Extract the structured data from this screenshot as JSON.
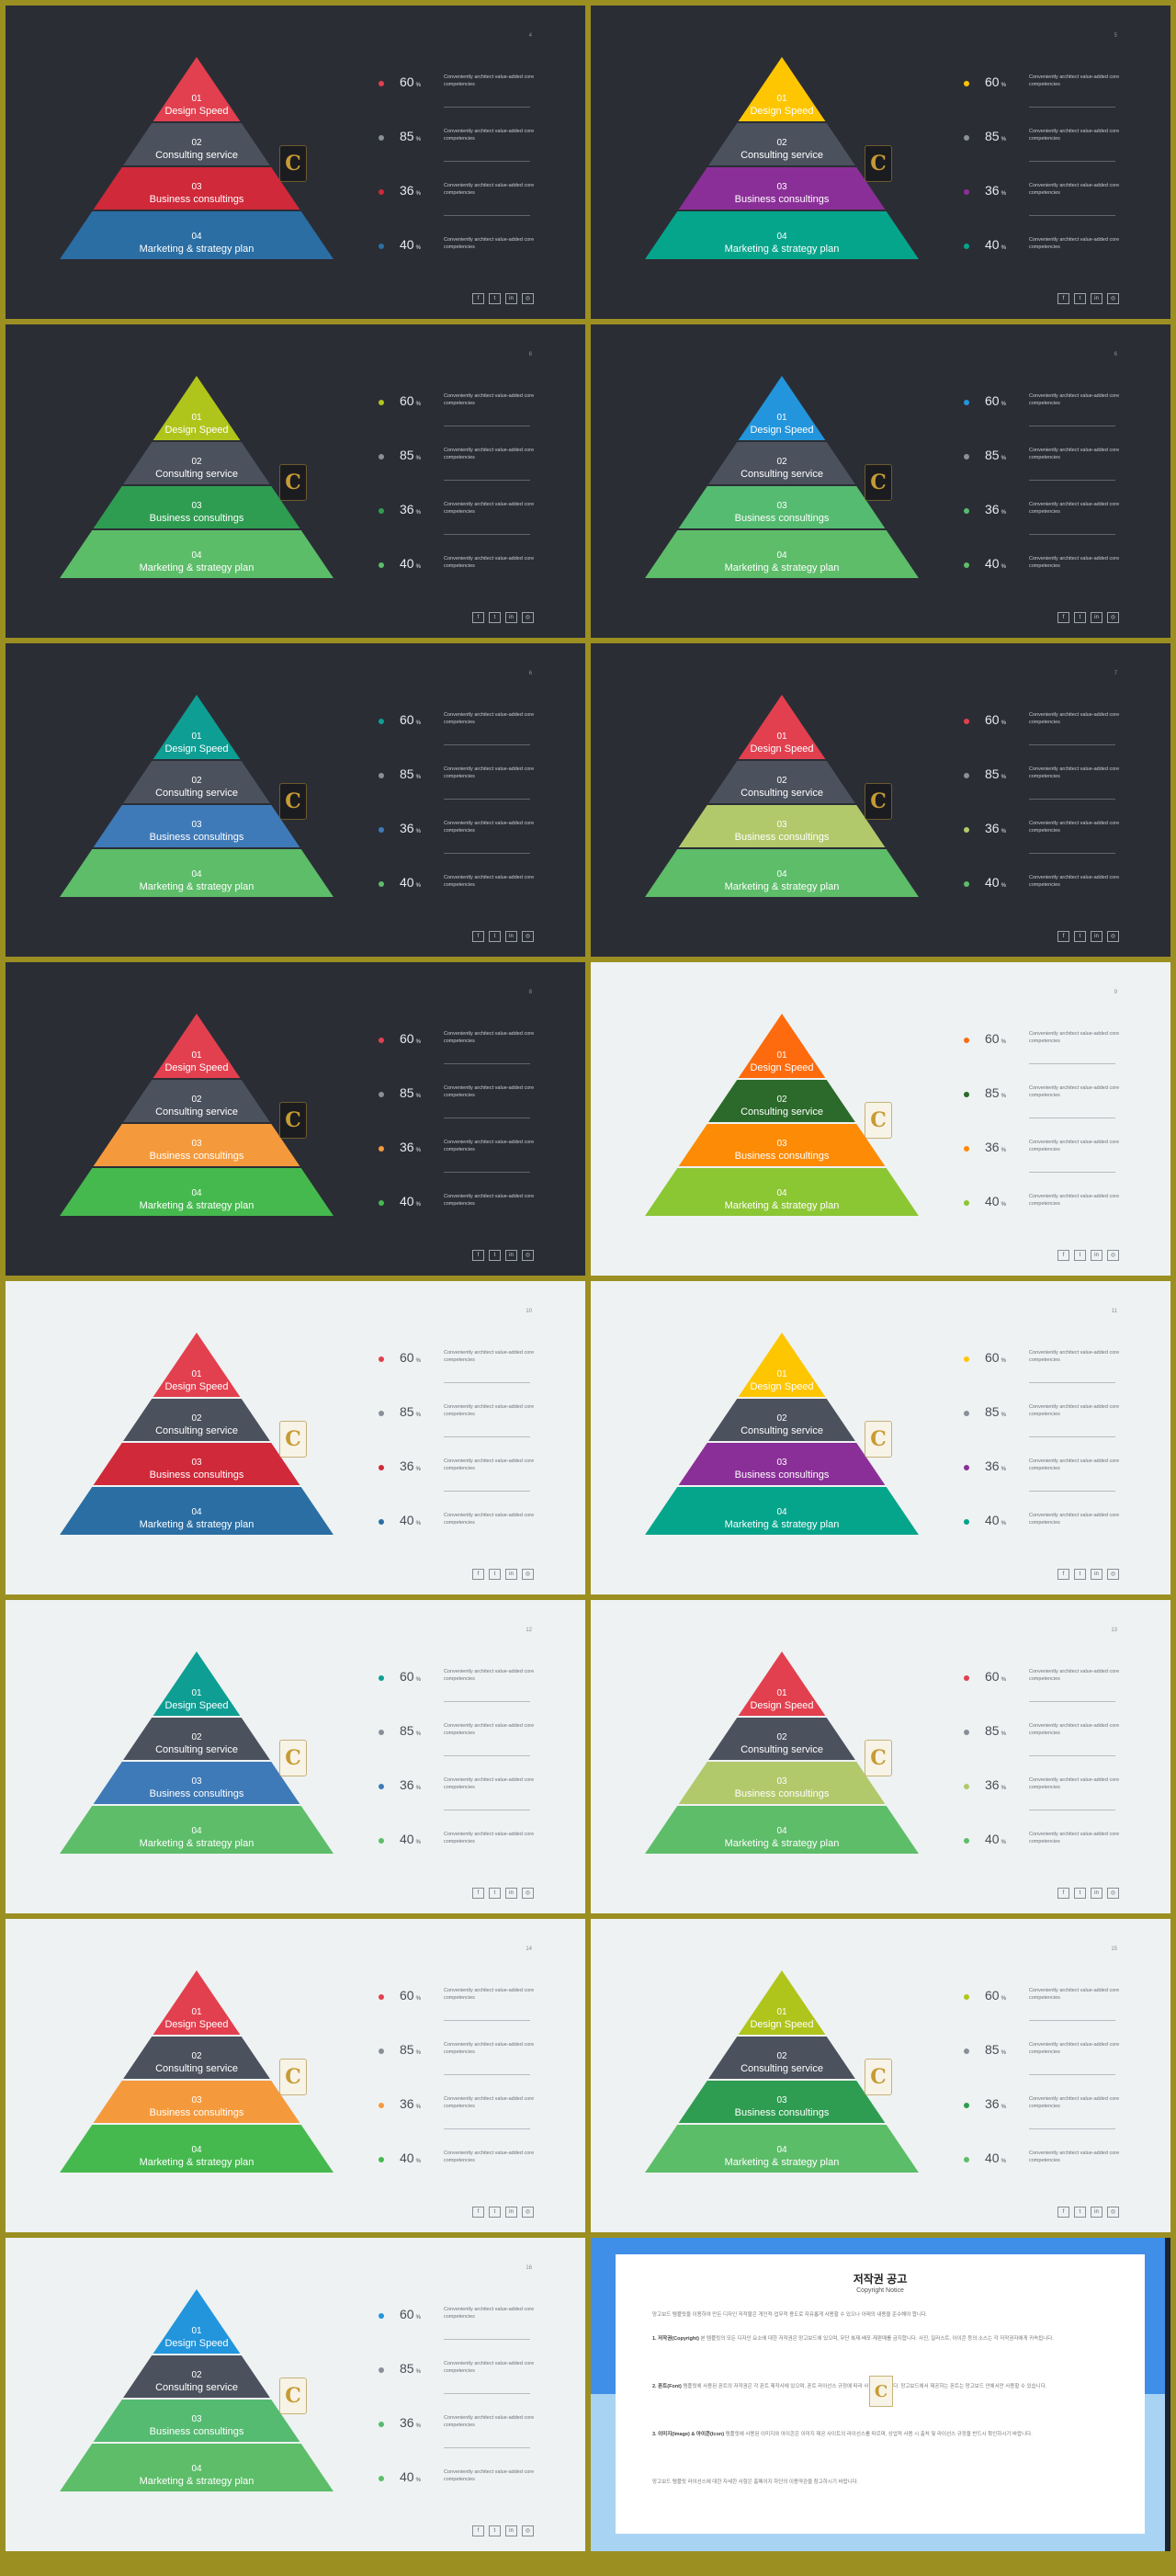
{
  "tiers": [
    {
      "num": "01",
      "label": "Design Speed"
    },
    {
      "num": "02",
      "label": "Consulting service"
    },
    {
      "num": "03",
      "label": "Business consultings"
    },
    {
      "num": "04",
      "label": "Marketing & strategy plan"
    }
  ],
  "stats": [
    {
      "value": "60",
      "unit": "%",
      "desc": "Conveniently architect value-added core competencies"
    },
    {
      "value": "85",
      "unit": "%",
      "desc": "Conveniently architect value-added core competencies"
    },
    {
      "value": "36",
      "unit": "%",
      "desc": "Conveniently architect value-added core competencies"
    },
    {
      "value": "40",
      "unit": "%",
      "desc": "Conveniently architect value-added core competencies"
    }
  ],
  "logo_letter": "C",
  "social_icons": [
    "facebook-icon",
    "twitter-icon",
    "linkedin-icon",
    "instagram-icon"
  ],
  "social_glyphs": [
    "f",
    "t",
    "in",
    "◎"
  ],
  "slides": [
    {
      "page": "4",
      "theme": "dark",
      "colors": [
        "#e2404f",
        "#4b515d",
        "#d0293a",
        "#2a6ea4"
      ]
    },
    {
      "page": "5",
      "theme": "dark",
      "colors": [
        "#fec600",
        "#4b515d",
        "#8b2f98",
        "#05a58c"
      ]
    },
    {
      "page": "6",
      "theme": "dark",
      "colors": [
        "#afc51b",
        "#4b515d",
        "#2f9d51",
        "#5cbd69"
      ]
    },
    {
      "page": "6",
      "theme": "dark",
      "colors": [
        "#2295dc",
        "#4b515d",
        "#55bb71",
        "#5dbd69"
      ]
    },
    {
      "page": "6",
      "theme": "dark",
      "colors": [
        "#0e9e94",
        "#4b515d",
        "#3f7ab8",
        "#5dbd69"
      ]
    },
    {
      "page": "7",
      "theme": "dark",
      "colors": [
        "#e2404f",
        "#4b515d",
        "#b2c96b",
        "#5dbd69"
      ]
    },
    {
      "page": "8",
      "theme": "dark",
      "colors": [
        "#e2404f",
        "#4b515d",
        "#f59a3c",
        "#45b94e"
      ]
    },
    {
      "page": "9",
      "theme": "light",
      "colors": [
        "#fd6b0e",
        "#2b6a2a",
        "#fd8b05",
        "#8bc633"
      ]
    },
    {
      "page": "10",
      "theme": "light",
      "colors": [
        "#e2404f",
        "#4b515d",
        "#d0293a",
        "#2a6ea4"
      ]
    },
    {
      "page": "11",
      "theme": "light",
      "colors": [
        "#fec600",
        "#4b515d",
        "#8b2f98",
        "#05a58c"
      ]
    },
    {
      "page": "12",
      "theme": "light",
      "colors": [
        "#0e9e94",
        "#4b515d",
        "#3f7ab8",
        "#5dbd69"
      ]
    },
    {
      "page": "13",
      "theme": "light",
      "colors": [
        "#e2404f",
        "#4b515d",
        "#b2c96b",
        "#5dbd69"
      ]
    },
    {
      "page": "14",
      "theme": "light",
      "colors": [
        "#e2404f",
        "#4b515d",
        "#f59a3c",
        "#45b94e"
      ]
    },
    {
      "page": "15",
      "theme": "light",
      "colors": [
        "#afc51b",
        "#4b515d",
        "#2f9d51",
        "#5cbd69"
      ]
    },
    {
      "page": "16",
      "theme": "light",
      "colors": [
        "#2295dc",
        "#4b515d",
        "#55bb71",
        "#5dbd69"
      ]
    }
  ],
  "notice": {
    "title": "저작권 공고",
    "subtitle": "Copyright Notice",
    "intro": "망고보드 템플릿을 이용하여 만든 디자인 저작물은 개인적·업무적 용도로 자유롭게 사용할 수 있으나 아래의 내용을 준수해야 합니다.",
    "p1_head": "1. 저작권(Copyright)",
    "p1": " 본 템플릿의 모든 디자인 요소에 대한 저작권은 망고보드에 있으며, 무단 복제·배포·재판매를 금지합니다. 사진, 일러스트, 아이콘 등의 소스는 각 저작권자에게 귀속됩니다.",
    "p2_head": "2. 폰트(Font)",
    "p2": " 템플릿에 사용된 폰트의 저작권은 각 폰트 제작사에 있으며, 폰트 라이선스 규정에 따라 사용해야 합니다. 망고보드에서 제공하는 폰트는 망고보드 안에서만 사용할 수 있습니다.",
    "p3_head": "3. 이미지(Image) & 아이콘(Icon)",
    "p3": " 템플릿에 사용된 이미지와 아이콘은 이미지 제공 사이트의 라이선스를 따르며, 상업적 사용 시 출처 및 라이선스 규정을 반드시 확인하시기 바랍니다.",
    "outro": "망고보드 템플릿 라이선스에 대한 자세한 사항은 홈페이지 하단의 이용약관을 참고하시기 바랍니다."
  }
}
